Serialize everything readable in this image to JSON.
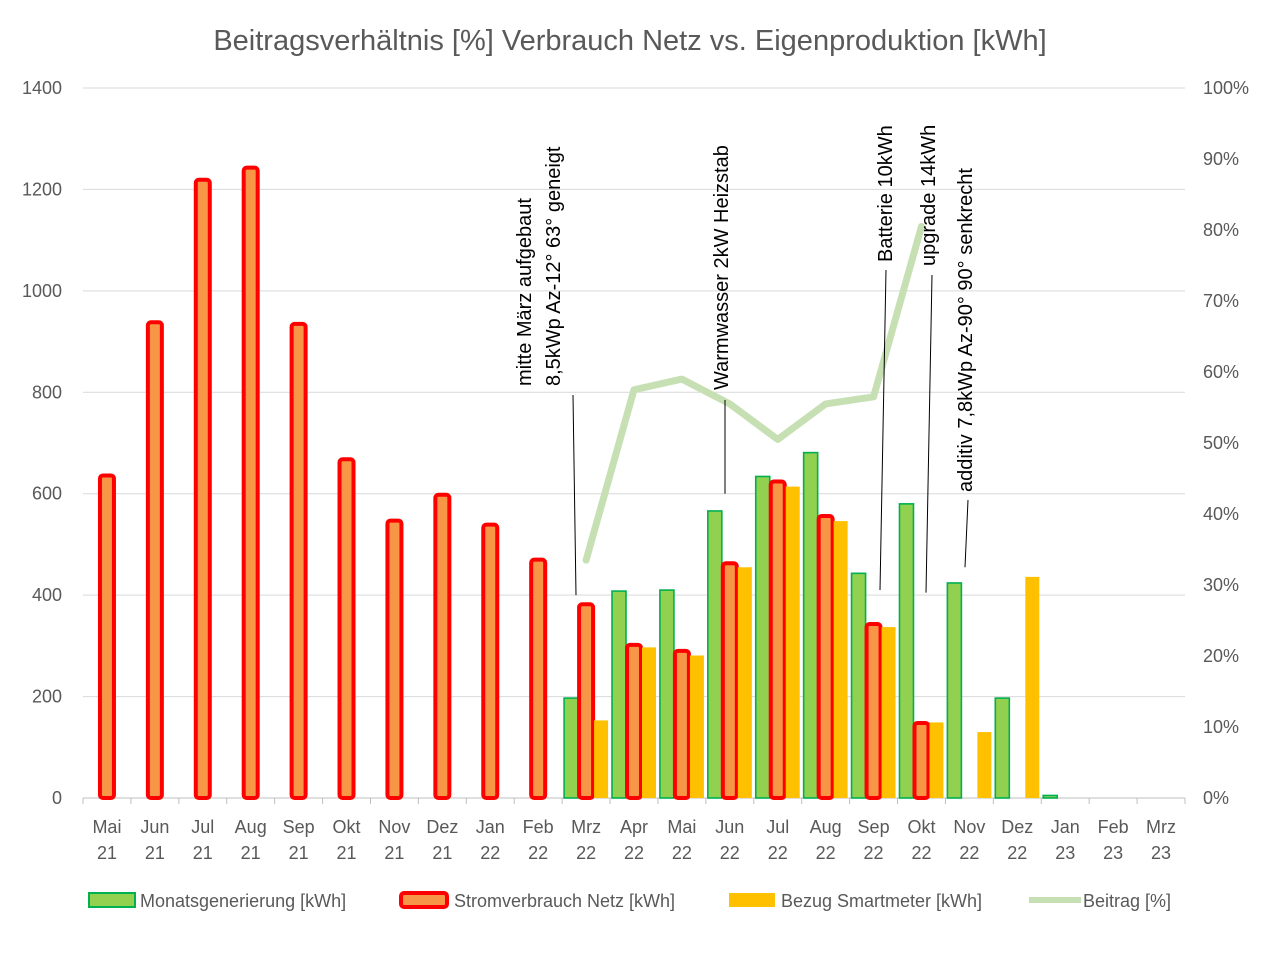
{
  "chart_data": {
    "type": "bar",
    "title": "Beitragsverhältnis [%] Verbrauch Netz vs. Eigenproduktion [kWh]",
    "categories": [
      [
        "Mai",
        "21"
      ],
      [
        "Jun",
        "21"
      ],
      [
        "Jul",
        "21"
      ],
      [
        "Aug",
        "21"
      ],
      [
        "Sep",
        "21"
      ],
      [
        "Okt",
        "21"
      ],
      [
        "Nov",
        "21"
      ],
      [
        "Dez",
        "21"
      ],
      [
        "Jan",
        "22"
      ],
      [
        "Feb",
        "22"
      ],
      [
        "Mrz",
        "22"
      ],
      [
        "Apr",
        "22"
      ],
      [
        "Mai",
        "22"
      ],
      [
        "Jun",
        "22"
      ],
      [
        "Jul",
        "22"
      ],
      [
        "Aug",
        "22"
      ],
      [
        "Sep",
        "22"
      ],
      [
        "Okt",
        "22"
      ],
      [
        "Nov",
        "22"
      ],
      [
        "Dez",
        "22"
      ],
      [
        "Jan",
        "23"
      ],
      [
        "Feb",
        "23"
      ],
      [
        "Mrz",
        "23"
      ]
    ],
    "ylim": [
      0,
      1400
    ],
    "y_ticks": [
      "0",
      "200",
      "400",
      "600",
      "800",
      "1000",
      "1200",
      "1400"
    ],
    "y2lim": [
      0,
      100
    ],
    "y2_ticks": [
      "0%",
      "10%",
      "20%",
      "30%",
      "40%",
      "50%",
      "60%",
      "70%",
      "80%",
      "90%",
      "100%"
    ],
    "grid": true,
    "legend_position": "bottom",
    "series": [
      {
        "name": "Monatsgenerierung [kWh]",
        "kind": "bar",
        "fill": "#92d050",
        "stroke": "#00b050",
        "values": [
          null,
          null,
          null,
          null,
          null,
          null,
          null,
          null,
          null,
          null,
          197,
          408,
          410,
          566,
          634,
          681,
          443,
          580,
          424,
          197,
          5,
          null,
          null
        ]
      },
      {
        "name": "Stromverbrauch Netz [kWh]",
        "kind": "bar",
        "fill": "#f79646",
        "stroke": "#ff0000",
        "values": [
          636,
          938,
          1219,
          1243,
          935,
          668,
          547,
          598,
          539,
          470,
          382,
          302,
          290,
          463,
          624,
          556,
          343,
          148,
          null,
          null,
          null,
          null,
          null
        ]
      },
      {
        "name": "Bezug Smartmeter [kWh]",
        "kind": "bar",
        "fill": "#ffc000",
        "stroke": "#ffc000",
        "values": [
          null,
          null,
          null,
          null,
          null,
          null,
          null,
          null,
          null,
          null,
          153,
          297,
          281,
          455,
          614,
          546,
          337,
          149,
          130,
          436,
          null,
          null,
          null
        ]
      },
      {
        "name": "Beitrag [%]",
        "kind": "line",
        "axis": "secondary",
        "stroke": "#c6e0b4",
        "values": [
          null,
          null,
          null,
          null,
          null,
          null,
          null,
          null,
          null,
          null,
          33.5,
          57.5,
          59,
          55.5,
          50.5,
          55.5,
          56.5,
          80.5,
          null,
          null,
          null,
          null,
          null
        ]
      }
    ],
    "annotations": [
      {
        "lines": [
          "mitte März aufgebaut",
          "8,5kWp Az-12° 63° geneigt"
        ],
        "category_index": 10,
        "value": 400
      },
      {
        "lines": [
          "Warmwasser 2kW Heizstab"
        ],
        "category_index": 13,
        "value": 600
      },
      {
        "lines": [
          "Batterie 10kWh"
        ],
        "category_index": 16,
        "value": 410
      },
      {
        "lines": [
          "upgrade 14kWh"
        ],
        "category_index": 17,
        "value": 405
      },
      {
        "lines": [
          "additiv  7,8kWp Az-90° 90° senkrecht"
        ],
        "category_index": 18,
        "value": 455
      }
    ]
  }
}
